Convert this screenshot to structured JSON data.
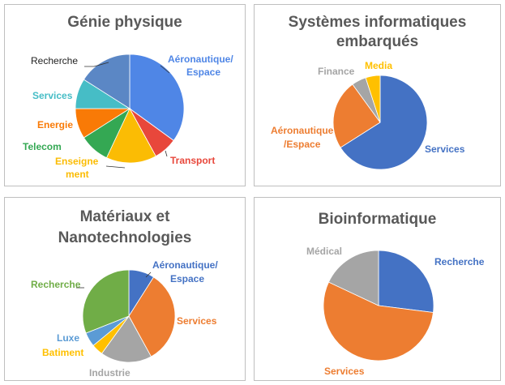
{
  "chart_data": [
    {
      "type": "pie",
      "title": "Génie physique",
      "slices": [
        {
          "label": "Aéronautique/ Espace",
          "value": 35,
          "color": "#4f86e6"
        },
        {
          "label": "Transport",
          "value": 7,
          "color": "#e8473b"
        },
        {
          "label": "Enseignement",
          "value": 15,
          "color": "#fbbc04"
        },
        {
          "label": "Telecom",
          "value": 9,
          "color": "#34a853"
        },
        {
          "label": "Energie",
          "value": 9,
          "color": "#f97a06"
        },
        {
          "label": "Services",
          "value": 9,
          "color": "#46bdc6"
        },
        {
          "label": "Recherche",
          "value": 16,
          "color": "#5b87c5"
        }
      ]
    },
    {
      "type": "pie",
      "title": "Systèmes informatiques embarqués",
      "slices": [
        {
          "label": "Services",
          "value": 66,
          "color": "#4472c4"
        },
        {
          "label": "Aéronautique /Espace",
          "value": 24,
          "color": "#ed7d31"
        },
        {
          "label": "Finance",
          "value": 5,
          "color": "#a5a5a5"
        },
        {
          "label": "Media",
          "value": 5,
          "color": "#ffc000"
        }
      ]
    },
    {
      "type": "pie",
      "title": "Matériaux et Nanotechnologies",
      "slices": [
        {
          "label": "Aéronautique/ Espace",
          "value": 9,
          "color": "#4472c4"
        },
        {
          "label": "Services",
          "value": 33,
          "color": "#ed7d31"
        },
        {
          "label": "Industrie",
          "value": 18,
          "color": "#a5a5a5"
        },
        {
          "label": "Batiment",
          "value": 4,
          "color": "#ffc000"
        },
        {
          "label": "Luxe",
          "value": 5,
          "color": "#5b9bd5"
        },
        {
          "label": "Recherche",
          "value": 31,
          "color": "#70ad47"
        }
      ]
    },
    {
      "type": "pie",
      "title": "Bioinformatique",
      "slices": [
        {
          "label": "Recherche",
          "value": 27,
          "color": "#4472c4"
        },
        {
          "label": "Services",
          "value": 55,
          "color": "#ed7d31"
        },
        {
          "label": "Médical",
          "value": 18,
          "color": "#a5a5a5"
        }
      ]
    }
  ],
  "labels": {
    "genie": {
      "aero_line1": "Aéronautique/",
      "aero_line2": "Espace",
      "transport": "Transport",
      "ens_line1": "Enseigne",
      "ens_line2": "ment",
      "telecom": "Telecom",
      "energie": "Energie",
      "services": "Services",
      "recherche": "Recherche"
    },
    "systemes": {
      "title_line1": "Systèmes informatiques",
      "title_line2": "embarqués",
      "finance": "Finance",
      "media": "Media",
      "aero_line1": "Aéronautique",
      "aero_line2": "/Espace",
      "services": "Services"
    },
    "materiaux": {
      "title_line1": "Matériaux et",
      "title_line2": "Nanotechnologies",
      "aero_line1": "Aéronautique/",
      "aero_line2": "Espace",
      "services": "Services",
      "industrie": "Industrie",
      "batiment": "Batiment",
      "luxe": "Luxe",
      "recherche": "Recherche"
    },
    "bio": {
      "medical": "Médical",
      "recherche": "Recherche",
      "services": "Services"
    }
  }
}
